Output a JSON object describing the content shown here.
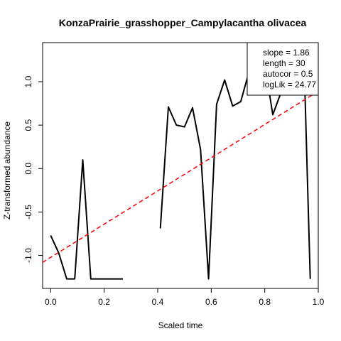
{
  "chart_data": {
    "type": "line",
    "title": "KonzaPrairie_grasshopper_Campylacantha olivacea",
    "xlabel": "Scaled time",
    "ylabel": "Z-transformed abundance",
    "xlim": [
      -0.03,
      1.0
    ],
    "ylim": [
      -1.38,
      1.45
    ],
    "xticks": [
      0.0,
      0.2,
      0.4,
      0.6,
      0.8,
      1.0
    ],
    "xtick_labels": [
      "0.0",
      "0.2",
      "0.4",
      "0.6",
      "0.8",
      "1.0"
    ],
    "yticks": [
      -1.0,
      -0.5,
      0.0,
      0.5,
      1.0
    ],
    "ytick_labels": [
      "-1.0",
      "-0.5",
      "0.0",
      "0.5",
      "1.0"
    ],
    "grid": false,
    "series": [
      {
        "color": "#000000",
        "style": "solid",
        "points": [
          [
            0.0,
            -0.77
          ],
          [
            0.03,
            -0.97
          ],
          [
            0.06,
            -1.27
          ],
          [
            0.09,
            -1.27
          ],
          [
            0.12,
            0.1
          ],
          [
            0.15,
            -1.27
          ],
          [
            0.18,
            -1.27
          ],
          [
            0.21,
            -1.27
          ],
          [
            0.24,
            -1.27
          ],
          [
            0.27,
            -1.27
          ],
          null,
          [
            0.41,
            -0.69
          ],
          [
            0.44,
            0.71
          ],
          [
            0.47,
            0.5
          ],
          [
            0.5,
            0.48
          ],
          [
            0.53,
            0.7
          ],
          [
            0.56,
            0.22
          ],
          [
            0.59,
            -1.27
          ],
          [
            0.62,
            0.74
          ],
          [
            0.65,
            1.02
          ],
          [
            0.68,
            0.72
          ],
          [
            0.71,
            0.77
          ],
          [
            0.74,
            1.1
          ],
          [
            0.77,
            1.25
          ],
          [
            0.8,
            1.2
          ],
          [
            0.83,
            0.62
          ],
          [
            0.86,
            0.87
          ],
          [
            0.89,
            0.95
          ],
          [
            0.92,
            0.9
          ],
          [
            0.95,
            0.9
          ],
          [
            0.97,
            -1.27
          ]
        ]
      },
      {
        "name": "",
        "color": "#ff0000",
        "style": "dashed",
        "line": {
          "x_from": -0.03,
          "x_to": 1.0,
          "y_from": -1.08,
          "y_to": 0.89
        }
      }
    ],
    "legend": {
      "position": "top-right",
      "entries": [
        "slope = 1.86",
        "length = 30",
        "autocor = 0.5",
        "logLik = 24.77"
      ]
    }
  }
}
